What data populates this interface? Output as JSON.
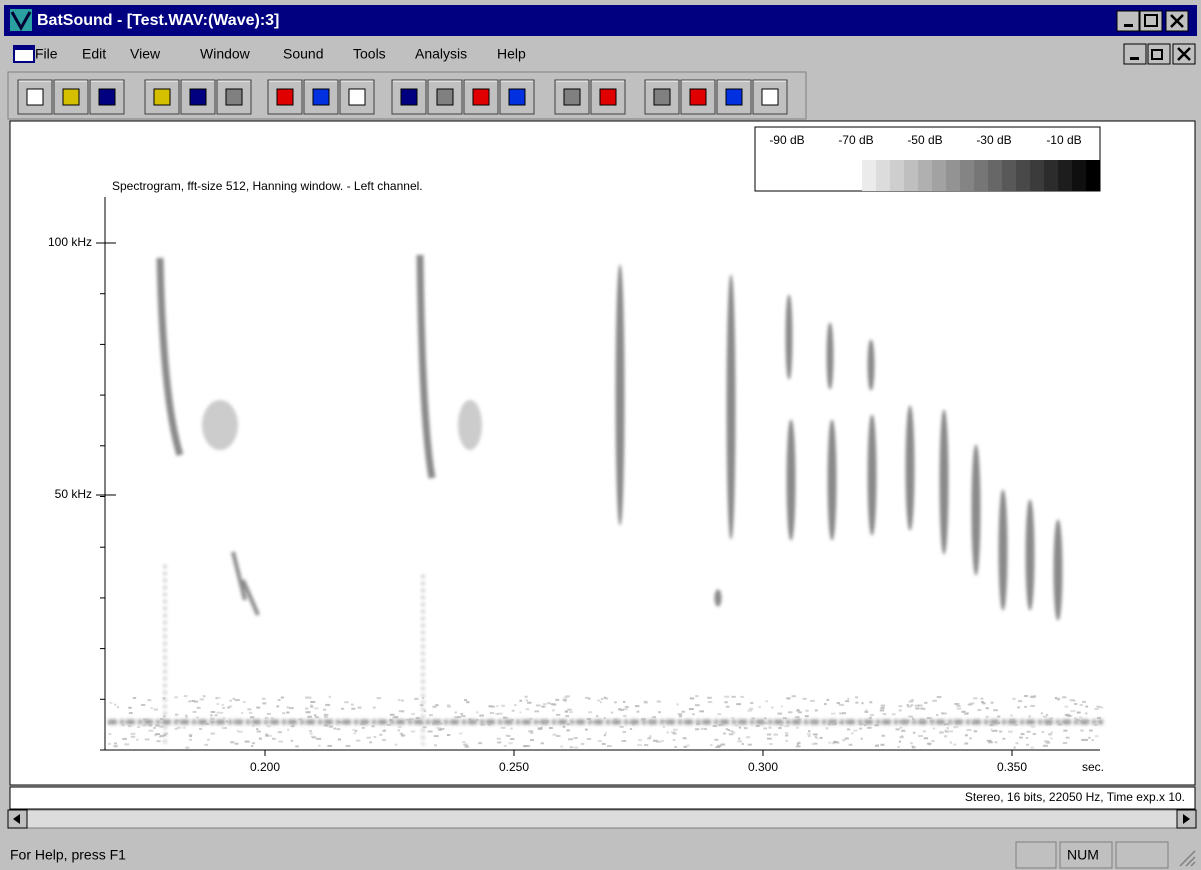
{
  "window": {
    "title": "BatSound - [Test.WAV:(Wave):3]"
  },
  "menu": [
    "File",
    "Edit",
    "View",
    "Window",
    "Sound",
    "Tools",
    "Analysis",
    "Help"
  ],
  "spectrogram": {
    "caption": "Spectrogram, fft-size 512, Hanning window. - Left channel.",
    "db_scale": [
      "-90 dB",
      "-70 dB",
      "-50 dB",
      "-30 dB",
      "-10 dB"
    ],
    "y_ticks": [
      "100 kHz",
      "50 kHz"
    ],
    "x_ticks": [
      "0.200",
      "0.250",
      "0.300",
      "0.350"
    ],
    "x_unit": "sec."
  },
  "info": "Stereo, 16 bits, 22050 Hz, Time exp.x 10.",
  "status": {
    "help": "For Help, press F1",
    "num": "NUM"
  }
}
